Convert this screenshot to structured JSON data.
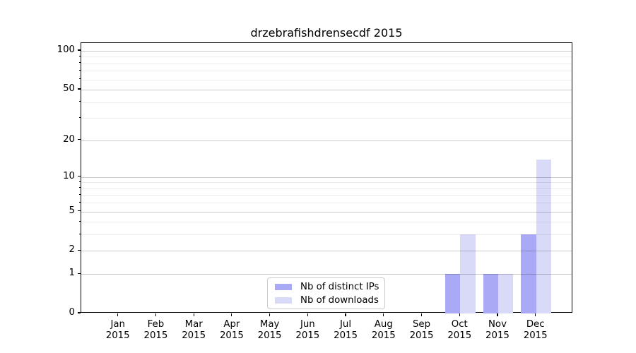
{
  "chart_data": {
    "type": "bar",
    "title": "drzebrafishdrensecdf 2015",
    "categories": [
      "Jan 2015",
      "Feb 2015",
      "Mar 2015",
      "Apr 2015",
      "May 2015",
      "Jun 2015",
      "Jul 2015",
      "Aug 2015",
      "Sep 2015",
      "Oct 2015",
      "Nov 2015",
      "Dec 2015"
    ],
    "series": [
      {
        "name": "Nb of distinct IPs",
        "color": "#a9a9f5",
        "values": [
          0,
          0,
          0,
          0,
          0,
          0,
          0,
          0,
          0,
          1,
          1,
          3
        ]
      },
      {
        "name": "Nb of downloads",
        "color": "#d9d9f8",
        "values": [
          0,
          0,
          0,
          0,
          0,
          0,
          0,
          0,
          0,
          3,
          1,
          14
        ]
      }
    ],
    "xlabel": "",
    "ylabel": "",
    "yscale": "log1p",
    "ylim": [
      0,
      115
    ],
    "y_major_ticks": [
      0,
      1,
      2,
      5,
      10,
      20,
      50,
      100
    ],
    "y_minor_ticks": [
      3,
      4,
      6,
      7,
      8,
      9,
      30,
      40,
      60,
      70,
      80,
      90
    ],
    "grid": "horizontal",
    "legend_location": "lower center"
  },
  "colors": {
    "major_grid": "#c9c9c9",
    "minor_grid": "#ebebeb",
    "spine": "#000000",
    "legend_border": "#cbcbcb"
  }
}
